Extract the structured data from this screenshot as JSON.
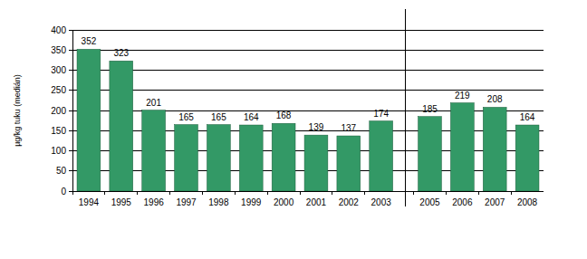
{
  "chart_data": {
    "type": "bar",
    "ylabel": "µg/kg tuku (medián)",
    "categories": [
      "1994",
      "1995",
      "1996",
      "1997",
      "1998",
      "1999",
      "2000",
      "2001",
      "2002",
      "2003",
      null,
      "2005",
      "2006",
      "2007",
      "2008"
    ],
    "values": [
      352,
      323,
      201,
      165,
      165,
      164,
      168,
      139,
      137,
      174,
      null,
      185,
      219,
      208,
      164
    ],
    "color": "#339966",
    "ylim": [
      0,
      400
    ],
    "yticks": [
      0,
      50,
      100,
      150,
      200,
      250,
      300,
      350,
      400
    ],
    "grid": true,
    "data_labels": true
  }
}
